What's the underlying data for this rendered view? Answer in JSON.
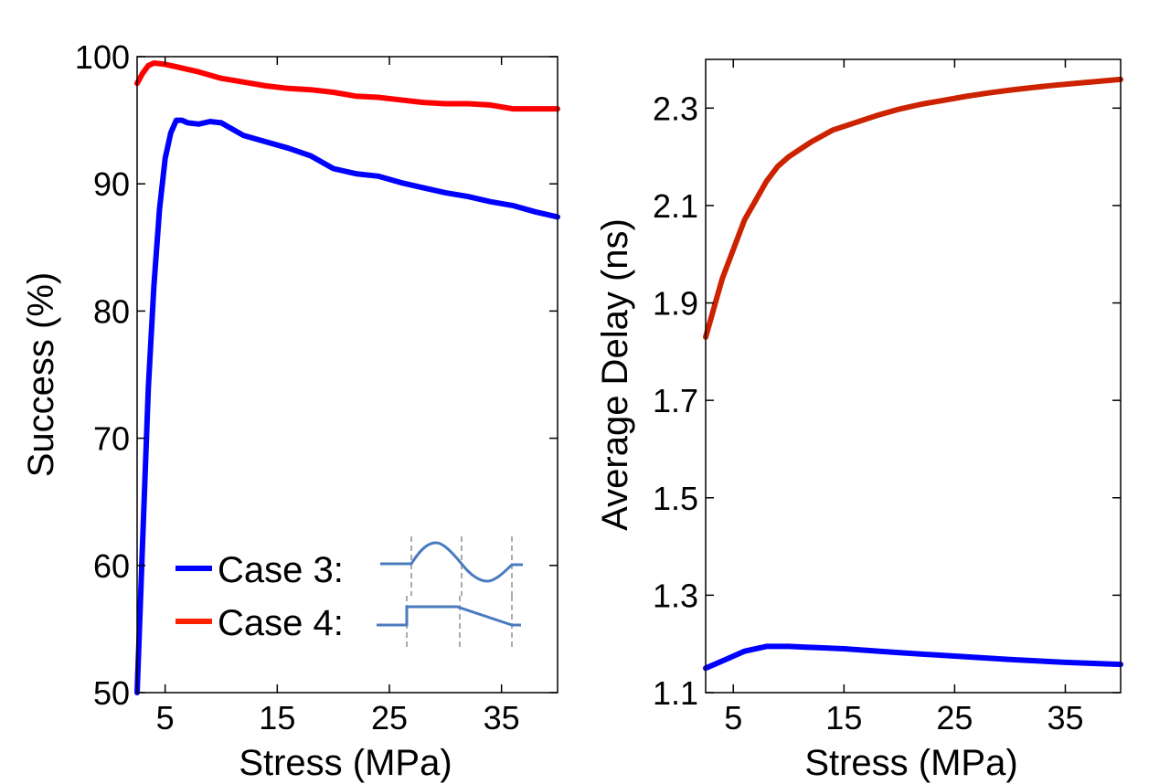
{
  "chart_data": [
    {
      "type": "line",
      "title": "",
      "xlabel": "Stress (MPa)",
      "ylabel": "Success (%)",
      "xlim": [
        2.5,
        40
      ],
      "ylim": [
        50,
        100
      ],
      "xticks": [
        5,
        15,
        25,
        35
      ],
      "yticks": [
        50,
        60,
        70,
        80,
        90,
        100
      ],
      "grid": false,
      "legend_position": "bottom-left",
      "series": [
        {
          "name": "Case 3:",
          "color": "#0000ff",
          "x": [
            2.5,
            3,
            3.5,
            4,
            4.5,
            5,
            5.5,
            6,
            6.5,
            7,
            8,
            9,
            10,
            12,
            14,
            16,
            18,
            20,
            22,
            24,
            26,
            28,
            30,
            32,
            34,
            36,
            38,
            40
          ],
          "y": [
            50,
            62,
            74,
            82,
            88,
            92,
            94,
            95,
            95,
            94.8,
            94.7,
            94.9,
            94.8,
            93.8,
            93.3,
            92.8,
            92.2,
            91.2,
            90.8,
            90.6,
            90.1,
            89.7,
            89.3,
            89.0,
            88.6,
            88.3,
            87.8,
            87.4
          ]
        },
        {
          "name": "Case 4:",
          "color": "#ff0000",
          "x": [
            2.5,
            3,
            3.5,
            4,
            5,
            6,
            8,
            10,
            12,
            14,
            16,
            18,
            20,
            22,
            24,
            26,
            28,
            30,
            32,
            34,
            36,
            38,
            40
          ],
          "y": [
            97.9,
            98.7,
            99.3,
            99.5,
            99.4,
            99.2,
            98.8,
            98.3,
            98.0,
            97.7,
            97.5,
            97.4,
            97.2,
            96.9,
            96.8,
            96.6,
            96.4,
            96.3,
            96.3,
            96.2,
            95.9,
            95.9,
            95.9
          ]
        }
      ]
    },
    {
      "type": "line",
      "title": "",
      "xlabel": "Stress (MPa)",
      "ylabel": "Average Delay (ns)",
      "xlim": [
        2.5,
        40
      ],
      "ylim": [
        1.1,
        2.4
      ],
      "xticks": [
        5,
        15,
        25,
        35
      ],
      "yticks": [
        1.1,
        1.3,
        1.5,
        1.7,
        1.9,
        2.1,
        2.3
      ],
      "yticklabels": [
        "1.1",
        "1.3",
        "1.5",
        "1.7",
        "1.9",
        "2.1",
        "2.3"
      ],
      "grid": false,
      "legend_position": "none",
      "series": [
        {
          "color": "#cc2200",
          "x": [
            2.5,
            3,
            3.5,
            4,
            5,
            6,
            7,
            8,
            9,
            10,
            12,
            14,
            16,
            18,
            20,
            22,
            24,
            26,
            28,
            30,
            32,
            34,
            36,
            38,
            40
          ],
          "y": [
            1.83,
            1.87,
            1.91,
            1.95,
            2.01,
            2.07,
            2.11,
            2.15,
            2.18,
            2.2,
            2.23,
            2.255,
            2.27,
            2.285,
            2.298,
            2.308,
            2.316,
            2.324,
            2.331,
            2.337,
            2.342,
            2.347,
            2.351,
            2.355,
            2.359
          ]
        },
        {
          "color": "#0000ff",
          "x": [
            2.5,
            4,
            6,
            8,
            10,
            15,
            20,
            25,
            30,
            35,
            40
          ],
          "y": [
            1.15,
            1.165,
            1.185,
            1.195,
            1.195,
            1.19,
            1.182,
            1.175,
            1.168,
            1.162,
            1.158
          ]
        }
      ]
    }
  ]
}
